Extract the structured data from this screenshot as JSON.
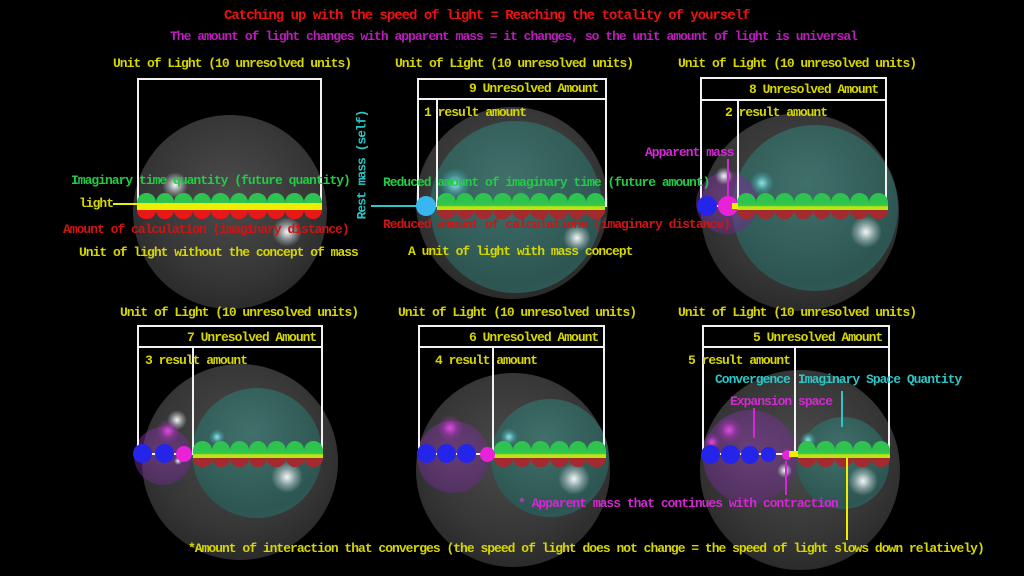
{
  "title": "Catching up with the speed of light = Reaching the totality of yourself",
  "subtitle": "The amount of light changes with apparent mass = it changes, so the unit amount of light is universal",
  "panels": [
    {
      "title": "Unit of Light (10 unresolved units)",
      "unresolved_units": 10,
      "result_units": 0,
      "labels": {
        "imaginary_time": "Imaginary time quantity (future quantity)",
        "light": "light",
        "calculation": "Amount of calculation (imaginary distance)",
        "caption": "Unit of light without the concept of mass"
      }
    },
    {
      "title": "Unit of Light (10 unresolved units)",
      "header": "9 Unresolved Amount",
      "result": "1 result amount",
      "unresolved_units": 9,
      "result_units": 1,
      "dots": {
        "rest_mass": 1
      },
      "labels": {
        "rest_mass": "Rest mass (self)",
        "reduced_time": "Reduced amount of imaginary time (future amount)",
        "reduced_calc": "Reduced amount of calculations (imaginary distance)",
        "caption": "A unit of light with mass concept"
      }
    },
    {
      "title": "Unit of Light (10 unresolved units)",
      "header": "8 Unresolved Amount",
      "result": "2 result amount",
      "unresolved_units": 8,
      "result_units": 2,
      "dots": {
        "blue": 1,
        "magenta": 1
      },
      "labels": {
        "apparent_mass": "Apparent mass"
      }
    },
    {
      "title": "Unit of Light (10 unresolved units)",
      "header": "7 Unresolved Amount",
      "result": "3 result amount",
      "unresolved_units": 7,
      "result_units": 3,
      "dots": {
        "blue": 2,
        "magenta": 1
      },
      "labels": {}
    },
    {
      "title": "Unit of Light (10 unresolved units)",
      "header": "6 Unresolved Amount",
      "result": "4 result amount",
      "unresolved_units": 6,
      "result_units": 4,
      "dots": {
        "blue": 3,
        "magenta": 1
      },
      "labels": {}
    },
    {
      "title": "Unit of Light (10 unresolved units)",
      "header": "5 Unresolved Amount",
      "result": "5 result amount",
      "unresolved_units": 5,
      "result_units": 5,
      "dots": {
        "blue": 4,
        "magenta": 1
      },
      "labels": {
        "convergence": "Convergence",
        "imaginary_space": "Imaginary Space Quantity",
        "expansion": "Expansion space"
      }
    }
  ],
  "annotations": {
    "apparent_mass_note": "* Apparent mass that continues with contraction",
    "interaction_note": "*Amount of interaction that converges (the speed of light does not change = the speed of light slows down relatively)"
  },
  "colors": {
    "title_red": "#ee1111",
    "subtitle_magenta": "#bb1cbb",
    "yellow": "#d6d600",
    "green": "#21cc46",
    "red": "#d01414",
    "cyan": "#2cc6c6",
    "magenta": "#d428d4",
    "white": "#f2f2f2",
    "blue_dot": "#2525ea",
    "cyan_dot": "#38b6f0",
    "magenta_dot": "#e822d8",
    "bump_green": "#2ec24e",
    "bump_red_bright": "#e81818",
    "bump_red_dark": "#a32b30",
    "band_yellow": "#eeee00",
    "band_green_top": "#35c848",
    "band_green_bottom": "#bce312",
    "sphere_gray": "#6f6f6f",
    "sphere_teal": "#315f5a",
    "sphere_purple": "#7a2da0"
  }
}
